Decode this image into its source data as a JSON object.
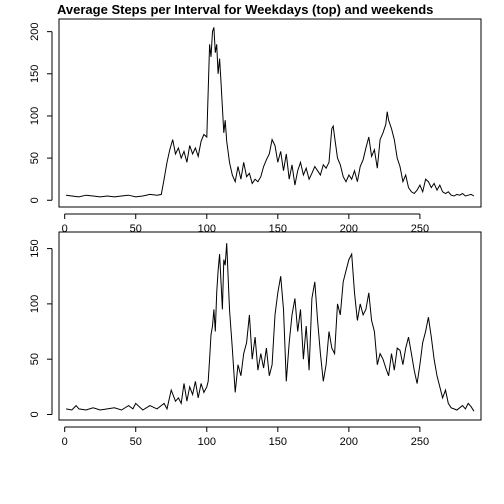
{
  "figure": {
    "title": "Average Steps per Interval for Weekdays (top) and weekends"
  },
  "chart_data": [
    {
      "type": "line",
      "panel": "top",
      "xlabel": "",
      "ylabel": "",
      "xlim": [
        -4,
        293
      ],
      "ylim": [
        -8,
        215
      ],
      "xticks": [
        0,
        50,
        100,
        150,
        200,
        250
      ],
      "yticks": [
        0,
        50,
        100,
        150,
        200
      ],
      "grid": false,
      "x": [
        1,
        5,
        10,
        15,
        20,
        25,
        30,
        35,
        40,
        45,
        50,
        55,
        60,
        65,
        68,
        70,
        72,
        74,
        76,
        78,
        80,
        82,
        84,
        86,
        88,
        90,
        92,
        94,
        96,
        98,
        100,
        101,
        102,
        103,
        104,
        105,
        106,
        107,
        108,
        109,
        110,
        111,
        112,
        113,
        114,
        116,
        118,
        120,
        122,
        124,
        126,
        128,
        130,
        132,
        134,
        136,
        138,
        140,
        142,
        144,
        146,
        148,
        150,
        152,
        154,
        156,
        158,
        160,
        162,
        164,
        166,
        168,
        170,
        172,
        174,
        176,
        178,
        180,
        182,
        184,
        186,
        188,
        189,
        190,
        192,
        194,
        196,
        198,
        200,
        202,
        204,
        206,
        208,
        210,
        212,
        214,
        216,
        218,
        220,
        222,
        224,
        226,
        227,
        228,
        230,
        232,
        234,
        236,
        238,
        240,
        242,
        244,
        246,
        248,
        250,
        252,
        254,
        256,
        258,
        260,
        262,
        264,
        266,
        268,
        270,
        272,
        274,
        276,
        278,
        280,
        282,
        284,
        286,
        288
      ],
      "y": [
        6,
        5,
        4,
        6,
        5,
        4,
        5,
        4,
        5,
        6,
        4,
        5,
        7,
        6,
        7,
        25,
        45,
        60,
        72,
        55,
        62,
        50,
        58,
        45,
        65,
        55,
        62,
        52,
        70,
        78,
        75,
        130,
        185,
        170,
        200,
        205,
        175,
        185,
        150,
        168,
        140,
        110,
        80,
        95,
        70,
        45,
        30,
        22,
        40,
        25,
        45,
        28,
        32,
        20,
        25,
        22,
        28,
        40,
        48,
        55,
        72,
        65,
        45,
        58,
        35,
        55,
        25,
        42,
        18,
        35,
        45,
        30,
        38,
        25,
        32,
        40,
        35,
        30,
        42,
        38,
        45,
        85,
        88,
        75,
        50,
        42,
        28,
        22,
        30,
        25,
        35,
        22,
        40,
        48,
        62,
        75,
        52,
        60,
        38,
        72,
        80,
        90,
        105,
        95,
        85,
        72,
        50,
        40,
        22,
        30,
        15,
        10,
        8,
        12,
        18,
        10,
        25,
        22,
        15,
        20,
        12,
        18,
        10,
        8,
        10,
        6,
        5,
        7,
        6,
        8,
        5,
        6,
        7,
        5
      ]
    },
    {
      "type": "line",
      "panel": "bottom",
      "xlabel": "",
      "ylabel": "",
      "xlim": [
        -4,
        293
      ],
      "ylim": [
        -5,
        165
      ],
      "xticks": [
        0,
        50,
        100,
        150,
        200,
        250
      ],
      "yticks": [
        0,
        50,
        100,
        150
      ],
      "grid": false,
      "x": [
        1,
        5,
        8,
        10,
        15,
        20,
        25,
        30,
        35,
        40,
        45,
        48,
        50,
        55,
        60,
        65,
        70,
        72,
        75,
        78,
        80,
        82,
        84,
        86,
        88,
        90,
        92,
        94,
        96,
        98,
        100,
        101,
        102,
        103,
        104,
        105,
        106,
        107,
        108,
        109,
        110,
        111,
        112,
        113,
        114,
        116,
        118,
        120,
        122,
        124,
        126,
        128,
        130,
        132,
        134,
        136,
        138,
        140,
        142,
        144,
        146,
        148,
        150,
        152,
        154,
        156,
        158,
        160,
        162,
        164,
        166,
        168,
        170,
        172,
        174,
        176,
        178,
        180,
        182,
        184,
        186,
        188,
        190,
        192,
        194,
        196,
        198,
        200,
        202,
        204,
        206,
        208,
        210,
        212,
        214,
        216,
        218,
        220,
        222,
        224,
        226,
        228,
        230,
        232,
        234,
        236,
        238,
        240,
        242,
        244,
        246,
        248,
        250,
        252,
        254,
        256,
        258,
        260,
        262,
        264,
        266,
        268,
        270,
        272,
        274,
        276,
        278,
        280,
        282,
        284,
        286,
        288
      ],
      "y": [
        5,
        4,
        8,
        5,
        4,
        6,
        4,
        5,
        6,
        4,
        8,
        5,
        10,
        4,
        8,
        5,
        10,
        5,
        22,
        12,
        15,
        10,
        28,
        12,
        25,
        18,
        30,
        15,
        28,
        20,
        25,
        30,
        50,
        72,
        80,
        95,
        75,
        110,
        130,
        145,
        120,
        95,
        140,
        135,
        155,
        95,
        60,
        20,
        45,
        35,
        55,
        65,
        90,
        50,
        70,
        40,
        55,
        42,
        60,
        35,
        45,
        90,
        110,
        125,
        95,
        30,
        65,
        90,
        105,
        75,
        95,
        50,
        80,
        40,
        105,
        120,
        85,
        55,
        30,
        45,
        75,
        60,
        55,
        100,
        90,
        120,
        130,
        140,
        145,
        110,
        85,
        100,
        90,
        95,
        110,
        85,
        75,
        45,
        55,
        50,
        42,
        35,
        55,
        40,
        60,
        58,
        45,
        60,
        70,
        55,
        40,
        28,
        45,
        65,
        75,
        88,
        70,
        50,
        35,
        25,
        15,
        22,
        10,
        6,
        5,
        4,
        6,
        8,
        5,
        10,
        7,
        3
      ]
    }
  ]
}
